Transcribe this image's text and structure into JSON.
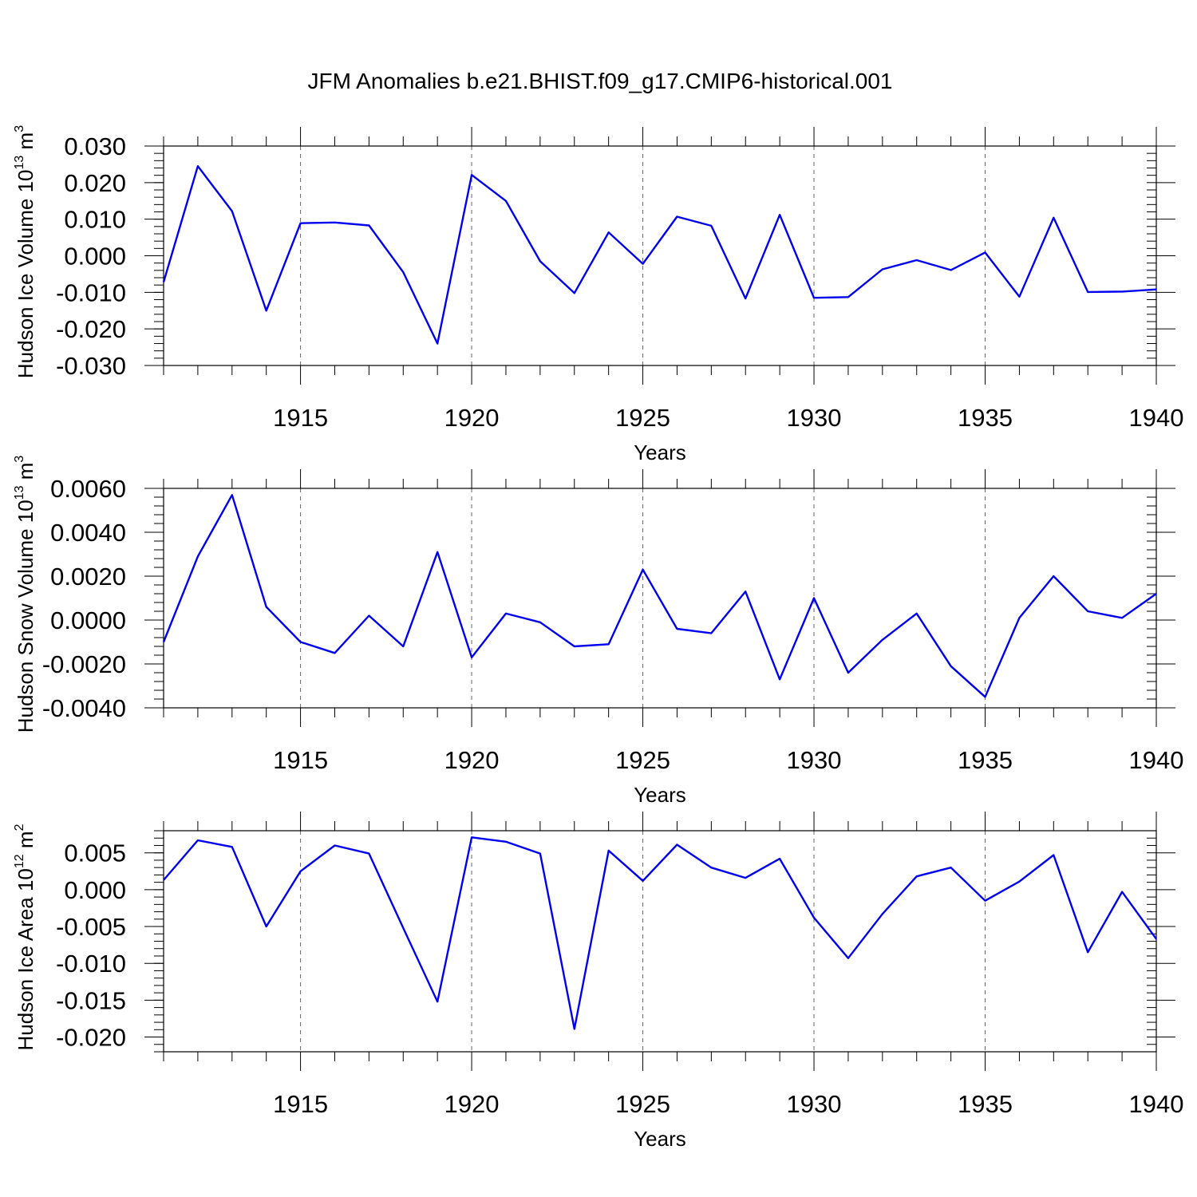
{
  "title": "JFM Anomalies b.e21.BHIST.f09_g17.CMIP6-historical.001",
  "colors": {
    "line": "#0000ee",
    "axis": "#000000",
    "grid": "#666666",
    "background": "#ffffff"
  },
  "chart_data": [
    {
      "type": "line",
      "ylabel": "Hudson Ice Volume",
      "yunit_base": "10",
      "yunit_exp": "13",
      "yunit_tail": "m",
      "yunit_tail_exp": "3",
      "xlabel": "Years",
      "xlim": [
        1911,
        1940
      ],
      "ylim": [
        -0.03,
        0.03
      ],
      "ytick_values": [
        -0.03,
        -0.02,
        -0.01,
        0.0,
        0.01,
        0.02,
        0.03
      ],
      "ytick_labels": [
        "-0.030",
        "-0.020",
        "-0.010",
        "0.000",
        "0.010",
        "0.020",
        "0.030"
      ],
      "yminor_step": 0.002,
      "xtick_values": [
        1915,
        1920,
        1925,
        1930,
        1935,
        1940
      ],
      "xtick_labels": [
        "1915",
        "1920",
        "1925",
        "1930",
        "1935",
        "1940"
      ],
      "grid_x": [
        1915,
        1920,
        1925,
        1930,
        1935
      ],
      "x": [
        1911,
        1912,
        1913,
        1914,
        1915,
        1916,
        1917,
        1918,
        1919,
        1920,
        1921,
        1922,
        1923,
        1924,
        1925,
        1926,
        1927,
        1928,
        1929,
        1930,
        1931,
        1932,
        1933,
        1934,
        1935,
        1936,
        1937,
        1938,
        1939,
        1940
      ],
      "y": [
        -0.0072,
        0.0245,
        0.0122,
        -0.015,
        0.0089,
        0.0091,
        0.0083,
        -0.0045,
        -0.024,
        0.0221,
        0.015,
        -0.0015,
        -0.0102,
        0.0064,
        -0.0022,
        0.0107,
        0.0082,
        -0.0117,
        0.0112,
        -0.0115,
        -0.0113,
        -0.0037,
        -0.0012,
        -0.0039,
        0.0009,
        -0.0112,
        0.0104,
        -0.0099,
        -0.0098,
        -0.0092
      ]
    },
    {
      "type": "line",
      "ylabel": "Hudson Snow Volume",
      "yunit_base": "10",
      "yunit_exp": "13",
      "yunit_tail": "m",
      "yunit_tail_exp": "3",
      "xlabel": "Years",
      "xlim": [
        1911,
        1940
      ],
      "ylim": [
        -0.004,
        0.006
      ],
      "ytick_values": [
        -0.004,
        -0.002,
        0.0,
        0.002,
        0.004,
        0.006
      ],
      "ytick_labels": [
        "-0.0040",
        "-0.0020",
        "0.0000",
        "0.0020",
        "0.0040",
        "0.0060"
      ],
      "yminor_step": 0.0004,
      "xtick_values": [
        1915,
        1920,
        1925,
        1930,
        1935,
        1940
      ],
      "xtick_labels": [
        "1915",
        "1920",
        "1925",
        "1930",
        "1935",
        "1940"
      ],
      "grid_x": [
        1915,
        1920,
        1925,
        1930,
        1935
      ],
      "x": [
        1911,
        1912,
        1913,
        1914,
        1915,
        1916,
        1917,
        1918,
        1919,
        1920,
        1921,
        1922,
        1923,
        1924,
        1925,
        1926,
        1927,
        1928,
        1929,
        1930,
        1931,
        1932,
        1933,
        1934,
        1935,
        1936,
        1937,
        1938,
        1939,
        1940
      ],
      "y": [
        -0.001,
        0.0029,
        0.0057,
        0.0006,
        -0.001,
        -0.0015,
        0.0002,
        -0.0012,
        0.0031,
        -0.0017,
        0.0003,
        -0.0001,
        -0.0012,
        -0.0011,
        0.0023,
        -0.0004,
        -0.0006,
        0.0013,
        -0.0027,
        0.001,
        -0.0024,
        -0.0009,
        0.0003,
        -0.0021,
        -0.0035,
        0.0001,
        0.002,
        0.0004,
        0.0001,
        0.0012
      ]
    },
    {
      "type": "line",
      "ylabel": "Hudson Ice Area",
      "yunit_base": "10",
      "yunit_exp": "12",
      "yunit_tail": "m",
      "yunit_tail_exp": "2",
      "xlabel": "Years",
      "xlim": [
        1911,
        1940
      ],
      "ylim": [
        -0.022,
        0.008
      ],
      "ytick_values": [
        -0.02,
        -0.015,
        -0.01,
        -0.005,
        0.0,
        0.005
      ],
      "ytick_labels": [
        "-0.020",
        "-0.015",
        "-0.010",
        "-0.005",
        "0.000",
        "0.005"
      ],
      "yminor_step": 0.001,
      "xtick_values": [
        1915,
        1920,
        1925,
        1930,
        1935,
        1940
      ],
      "xtick_labels": [
        "1915",
        "1920",
        "1925",
        "1930",
        "1935",
        "1940"
      ],
      "grid_x": [
        1915,
        1920,
        1925,
        1930,
        1935
      ],
      "x": [
        1911,
        1912,
        1913,
        1914,
        1915,
        1916,
        1917,
        1918,
        1919,
        1920,
        1921,
        1922,
        1923,
        1924,
        1925,
        1926,
        1927,
        1928,
        1929,
        1930,
        1931,
        1932,
        1933,
        1934,
        1935,
        1936,
        1937,
        1938,
        1939,
        1940
      ],
      "y": [
        0.0013,
        0.0067,
        0.0058,
        -0.005,
        0.0025,
        0.006,
        0.0049,
        -0.0052,
        -0.0152,
        0.0071,
        0.0065,
        0.0049,
        -0.0189,
        0.0053,
        0.0012,
        0.0061,
        0.003,
        0.0016,
        0.0042,
        -0.0038,
        -0.0093,
        -0.0033,
        0.0018,
        0.003,
        -0.0015,
        0.0011,
        0.0047,
        -0.0085,
        -0.0003,
        -0.0067
      ]
    }
  ]
}
